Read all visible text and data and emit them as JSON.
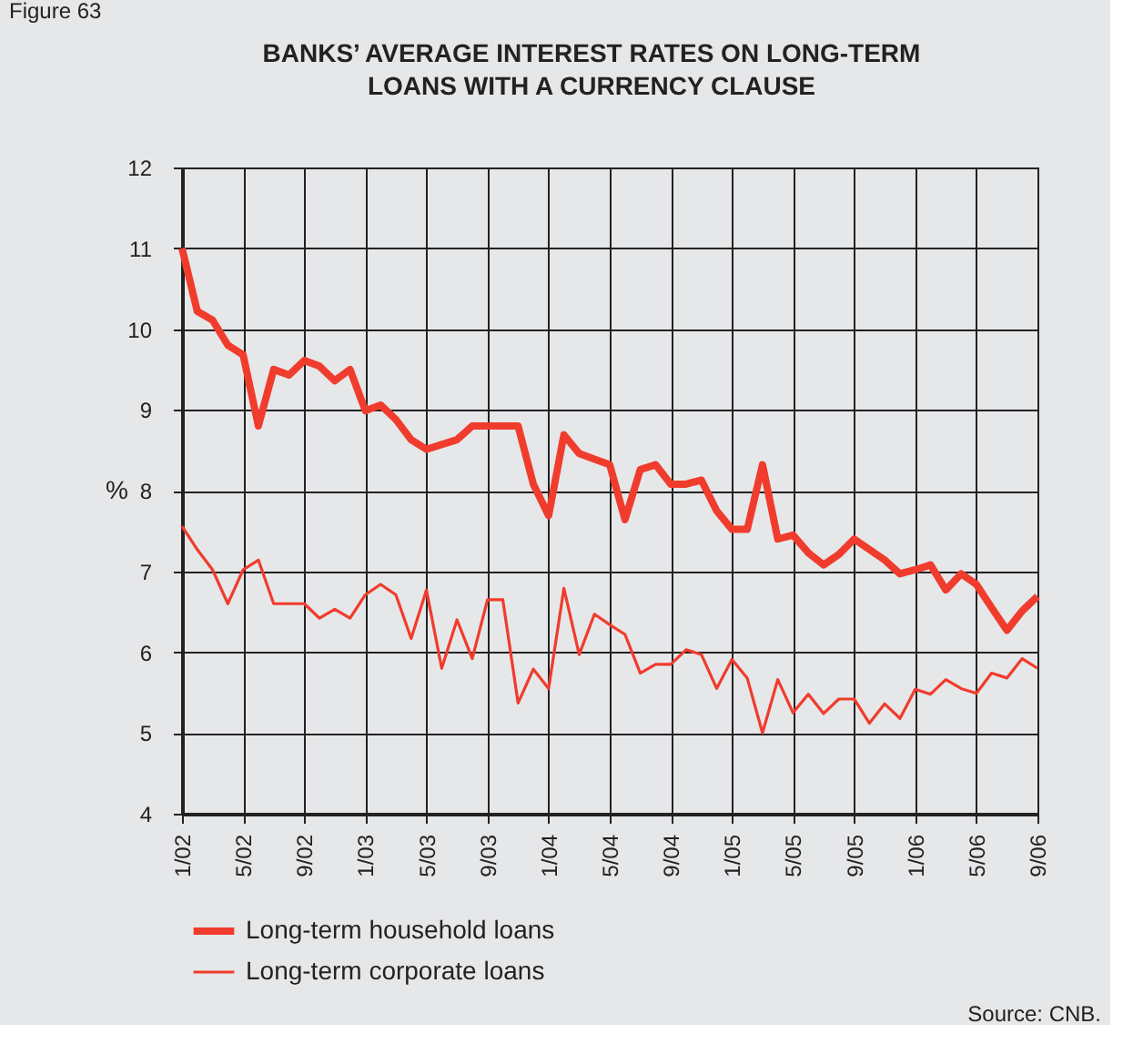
{
  "chart_data": {
    "type": "line",
    "title": "BANKS’ AVERAGE INTEREST RATES ON LONG-TERM\nLOANS WITH A CURRENCY CLAUSE",
    "ylabel": "%",
    "categories": [
      "1/02",
      null,
      null,
      null,
      "5/02",
      null,
      null,
      null,
      "9/02",
      null,
      null,
      null,
      "1/03",
      null,
      null,
      null,
      "5/03",
      null,
      null,
      null,
      "9/03",
      null,
      null,
      null,
      "1/04",
      null,
      null,
      null,
      "5/04",
      null,
      null,
      null,
      "9/04",
      null,
      null,
      null,
      "1/05",
      null,
      null,
      null,
      "5/05",
      null,
      null,
      null,
      "9/05",
      null,
      null,
      null,
      "1/06",
      null,
      null,
      null,
      "5/06",
      null,
      null,
      null,
      "9/06"
    ],
    "series": [
      {
        "name": "Long-term household loans",
        "color": "#f03c2d",
        "values": [
          11.0,
          10.22,
          10.11,
          9.8,
          9.68,
          8.8,
          9.5,
          9.43,
          9.61,
          9.54,
          9.36,
          9.5,
          8.99,
          9.06,
          8.88,
          8.63,
          8.51,
          8.57,
          8.63,
          8.8,
          8.8,
          8.8,
          8.8,
          8.08,
          7.69,
          8.69,
          8.46,
          8.39,
          8.32,
          7.64,
          8.26,
          8.32,
          8.08,
          8.08,
          8.13,
          7.75,
          7.52,
          7.52,
          8.32,
          7.4,
          7.45,
          7.23,
          7.08,
          7.21,
          7.4,
          7.27,
          7.14,
          6.97,
          7.02,
          7.08,
          6.77,
          6.97,
          6.84,
          6.55,
          6.27,
          6.51,
          6.69
        ]
      },
      {
        "name": "Long-term corporate loans",
        "color": "#f03c2d",
        "values": [
          7.56,
          7.27,
          7.02,
          6.6,
          7.02,
          7.14,
          6.6,
          6.6,
          6.6,
          6.42,
          6.53,
          6.42,
          6.71,
          6.84,
          6.71,
          6.17,
          6.77,
          5.8,
          6.4,
          5.92,
          6.65,
          6.65,
          5.37,
          5.79,
          5.55,
          6.79,
          5.97,
          6.47,
          6.34,
          6.22,
          5.74,
          5.85,
          5.85,
          6.03,
          5.97,
          5.55,
          5.91,
          5.68,
          5.0,
          5.66,
          5.25,
          5.48,
          5.24,
          5.42,
          5.42,
          5.12,
          5.36,
          5.18,
          5.54,
          5.48,
          5.66,
          5.55,
          5.49,
          5.74,
          5.68,
          5.92,
          5.8
        ]
      }
    ],
    "ylim": [
      4,
      12
    ],
    "yticks": [
      4,
      5,
      6,
      7,
      8,
      9,
      10,
      11,
      12
    ],
    "grid": true,
    "legend": "bottom",
    "marker": "none",
    "line_style": "solid",
    "annotations": [
      "Figure 63",
      "Source: CNB."
    ]
  }
}
